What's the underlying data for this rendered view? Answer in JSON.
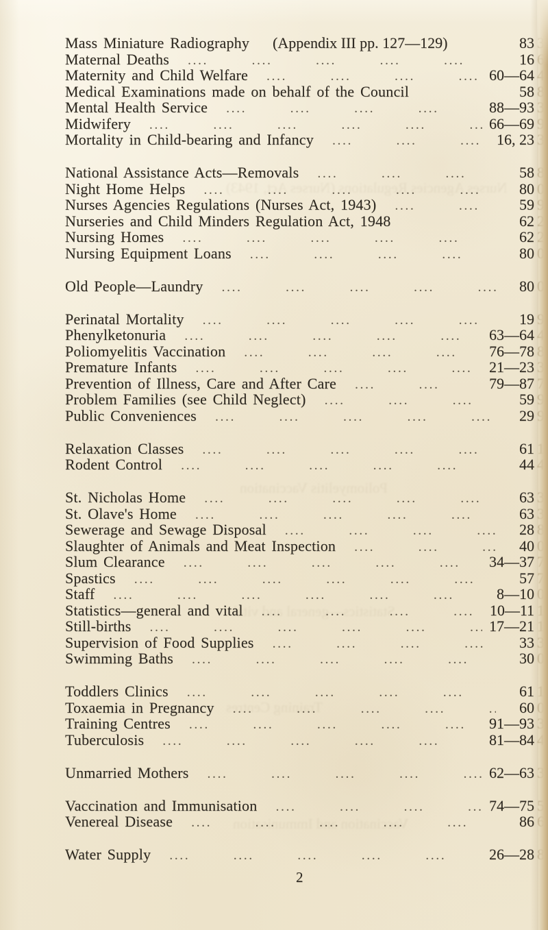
{
  "page": {
    "number": "2",
    "leader_token": "....",
    "colors": {
      "paper": "#f1e9d4",
      "ink": "#2e2921",
      "page_edge_tan": "#cab287"
    }
  },
  "index": {
    "groups": [
      {
        "entries": [
          {
            "title": "Mass Miniature Radiography",
            "note": "(Appendix III pp. 127—129)",
            "pages": "83",
            "leader": false
          },
          {
            "title": "Maternal Deaths",
            "pages": "16"
          },
          {
            "title": "Maternity and Child Welfare",
            "pages": "60—64"
          },
          {
            "title": "Medical Examinations made on behalf of the Council",
            "pages": "58",
            "leader": false
          },
          {
            "title": "Mental Health Service",
            "pages": "88—93"
          },
          {
            "title": "Midwifery",
            "pages": "66—69"
          },
          {
            "title": "Mortality in Child-bearing and Infancy",
            "pages": "16, 23"
          }
        ]
      },
      {
        "entries": [
          {
            "title": "National Assistance Acts—Removals",
            "pages": "58"
          },
          {
            "title": "Night Home Helps",
            "pages": "80"
          },
          {
            "title": "Nurses Agencies Regulations (Nurses Act, 1943)",
            "pages": "59"
          },
          {
            "title": "Nurseries and Child Minders Regulation Act, 1948",
            "pages": "62",
            "leader": false
          },
          {
            "title": "Nursing Homes",
            "pages": "62"
          },
          {
            "title": "Nursing Equipment Loans",
            "pages": "80"
          }
        ]
      },
      {
        "entries": [
          {
            "title": "Old People—Laundry",
            "pages": "80"
          }
        ]
      },
      {
        "entries": [
          {
            "title": "Perinatal Mortality",
            "pages": "19"
          },
          {
            "title": "Phenylketonuria",
            "pages": "63—64"
          },
          {
            "title": "Poliomyelitis Vaccination",
            "pages": "76—78"
          },
          {
            "title": "Premature Infants",
            "pages": "21—23"
          },
          {
            "title": "Prevention of Illness, Care and After Care",
            "pages": "79—87"
          },
          {
            "title": "Problem Families (see Child Neglect)",
            "pages": "59"
          },
          {
            "title": "Public Conveniences",
            "pages": "29"
          }
        ]
      },
      {
        "entries": [
          {
            "title": "Relaxation Classes",
            "pages": "61"
          },
          {
            "title": "Rodent Control",
            "pages": "44"
          }
        ]
      },
      {
        "entries": [
          {
            "title": "St. Nicholas Home",
            "pages": "63"
          },
          {
            "title": "St. Olave's Home",
            "pages": "63"
          },
          {
            "title": "Sewerage and Sewage Disposal",
            "pages": "28"
          },
          {
            "title": "Slaughter of Animals and Meat Inspection",
            "pages": "40"
          },
          {
            "title": "Slum Clearance",
            "pages": "34—37"
          },
          {
            "title": "Spastics",
            "pages": "57"
          },
          {
            "title": "Staff",
            "pages": "8—10"
          },
          {
            "title": "Statistics—general and vital",
            "pages": "10—11"
          },
          {
            "title": "Still-births",
            "pages": "17—21"
          },
          {
            "title": "Supervision of Food Supplies",
            "pages": "33"
          },
          {
            "title": "Swimming Baths",
            "pages": "30"
          }
        ]
      },
      {
        "entries": [
          {
            "title": "Toddlers Clinics",
            "pages": "61"
          },
          {
            "title": "Toxaemia in Pregnancy",
            "pages": "60"
          },
          {
            "title": "Training Centres",
            "pages": "91—93"
          },
          {
            "title": "Tuberculosis",
            "pages": "81—84"
          }
        ]
      },
      {
        "entries": [
          {
            "title": "Unmarried Mothers",
            "pages": "62—63"
          }
        ]
      },
      {
        "entries": [
          {
            "title": "Vaccination and Immunisation",
            "pages": "74—75"
          },
          {
            "title": "Venereal Disease",
            "pages": "86"
          }
        ]
      },
      {
        "entries": [
          {
            "title": "Water Supply",
            "pages": "26—28"
          }
        ]
      }
    ]
  }
}
